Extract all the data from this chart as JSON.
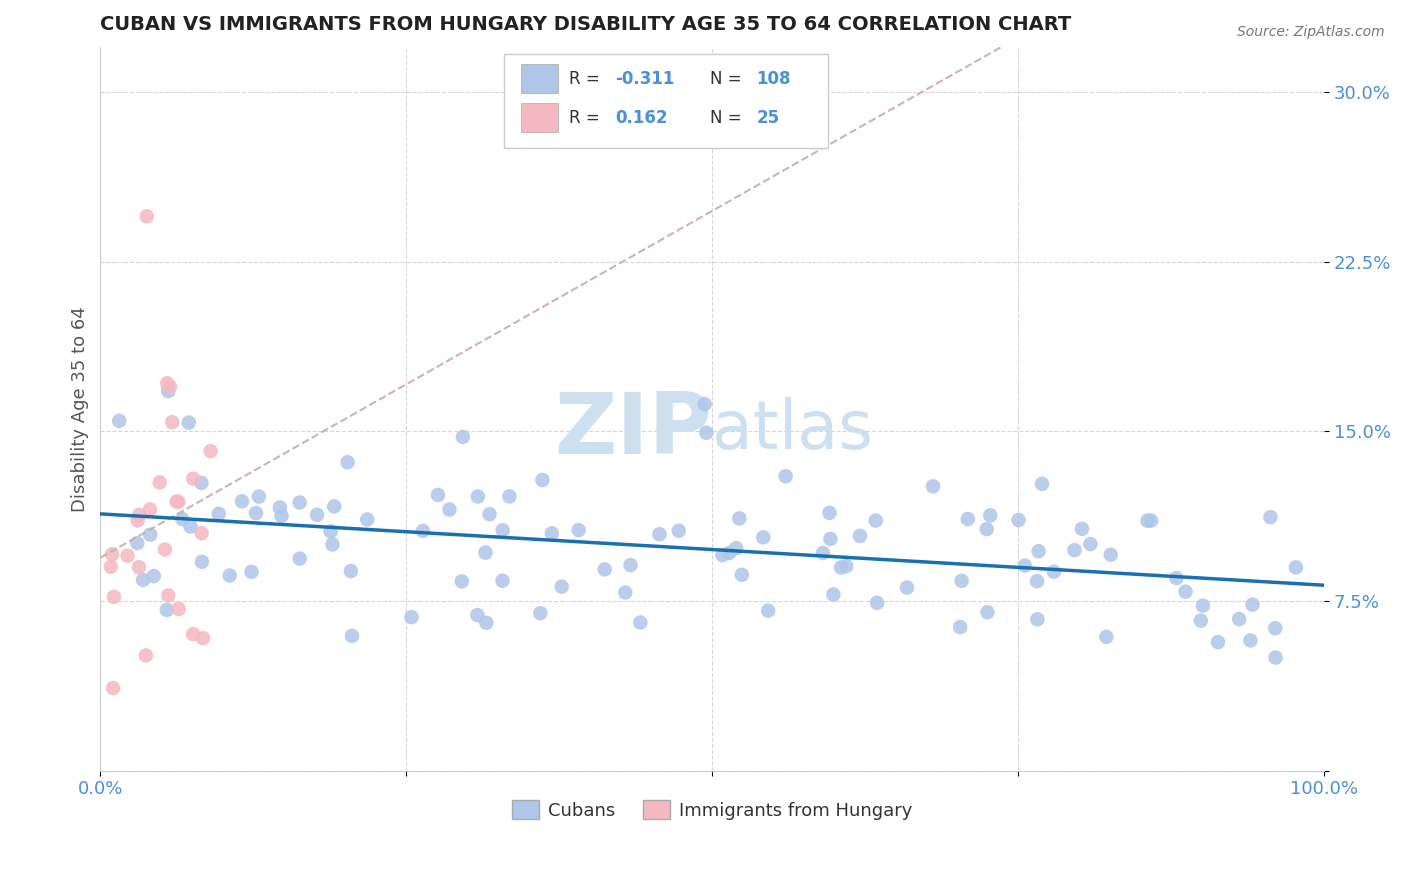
{
  "title": "CUBAN VS IMMIGRANTS FROM HUNGARY DISABILITY AGE 35 TO 64 CORRELATION CHART",
  "source_text": "Source: ZipAtlas.com",
  "ylabel": "Disability Age 35 to 64",
  "xlim": [
    0.0,
    1.0
  ],
  "ylim": [
    0.0,
    0.32
  ],
  "yticks": [
    0.0,
    0.075,
    0.15,
    0.225,
    0.3
  ],
  "ytick_labels": [
    "",
    "7.5%",
    "15.0%",
    "22.5%",
    "30.0%"
  ],
  "xticks": [
    0.0,
    0.25,
    0.5,
    0.75,
    1.0
  ],
  "xtick_labels": [
    "0.0%",
    "",
    "",
    "",
    "100.0%"
  ],
  "cubans_R": -0.311,
  "cubans_N": 108,
  "hungary_R": 0.162,
  "hungary_N": 25,
  "title_color": "#222222",
  "title_fontsize": 14,
  "axis_color": "#4a90d9",
  "ylabel_color": "#555555",
  "cubans_color": "#aec6e8",
  "hungary_color": "#f4b8c1",
  "cubans_line_color": "#1a6faf",
  "hungary_line_color": "#ccaaaa",
  "grid_color": "#cccccc",
  "watermark_color": "#cde0f0",
  "background_color": "#ffffff"
}
